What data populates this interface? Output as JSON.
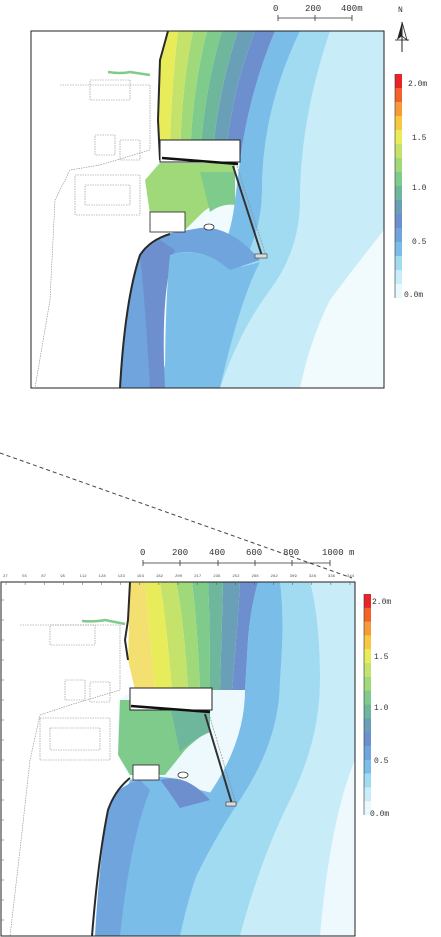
{
  "top_map": {
    "scale_labels": [
      "0",
      "200",
      "400m"
    ],
    "north_label": "N",
    "legend": {
      "labels": [
        "2.0m",
        "1.5",
        "1.0",
        "0.5",
        "0.0m"
      ],
      "colors": [
        "#e8232a",
        "#f4622a",
        "#f79a38",
        "#f8c840",
        "#e9ec5a",
        "#c5e36a",
        "#a0d97a",
        "#7fcb8b",
        "#6fb79c",
        "#6a9fb8",
        "#6d8fce",
        "#6fa4dd",
        "#7bbde9",
        "#a0dbf1",
        "#c8ecf8",
        "#e8f8fd"
      ]
    }
  },
  "bottom_map": {
    "scale_labels": [
      "0",
      "200",
      "400",
      "600",
      "800",
      "1000 m"
    ],
    "grid_labels": [
      "27",
      "55",
      "87",
      "95",
      "112",
      "128",
      "133",
      "163",
      "182",
      "200",
      "217",
      "236",
      "252",
      "268",
      "282",
      "309",
      "328",
      "336",
      "344"
    ],
    "legend": {
      "labels": [
        "2.0m",
        "1.5",
        "1.0",
        "0.5",
        "0.0m"
      ],
      "colors": [
        "#e8232a",
        "#f4622a",
        "#f79a38",
        "#f8c840",
        "#e9ec5a",
        "#c5e36a",
        "#a0d97a",
        "#7fcb8b",
        "#6fb79c",
        "#6a9fb8",
        "#6d8fce",
        "#6fa4dd",
        "#7bbde9",
        "#a0dbf1",
        "#c8ecf8",
        "#e8f8fd"
      ]
    }
  }
}
